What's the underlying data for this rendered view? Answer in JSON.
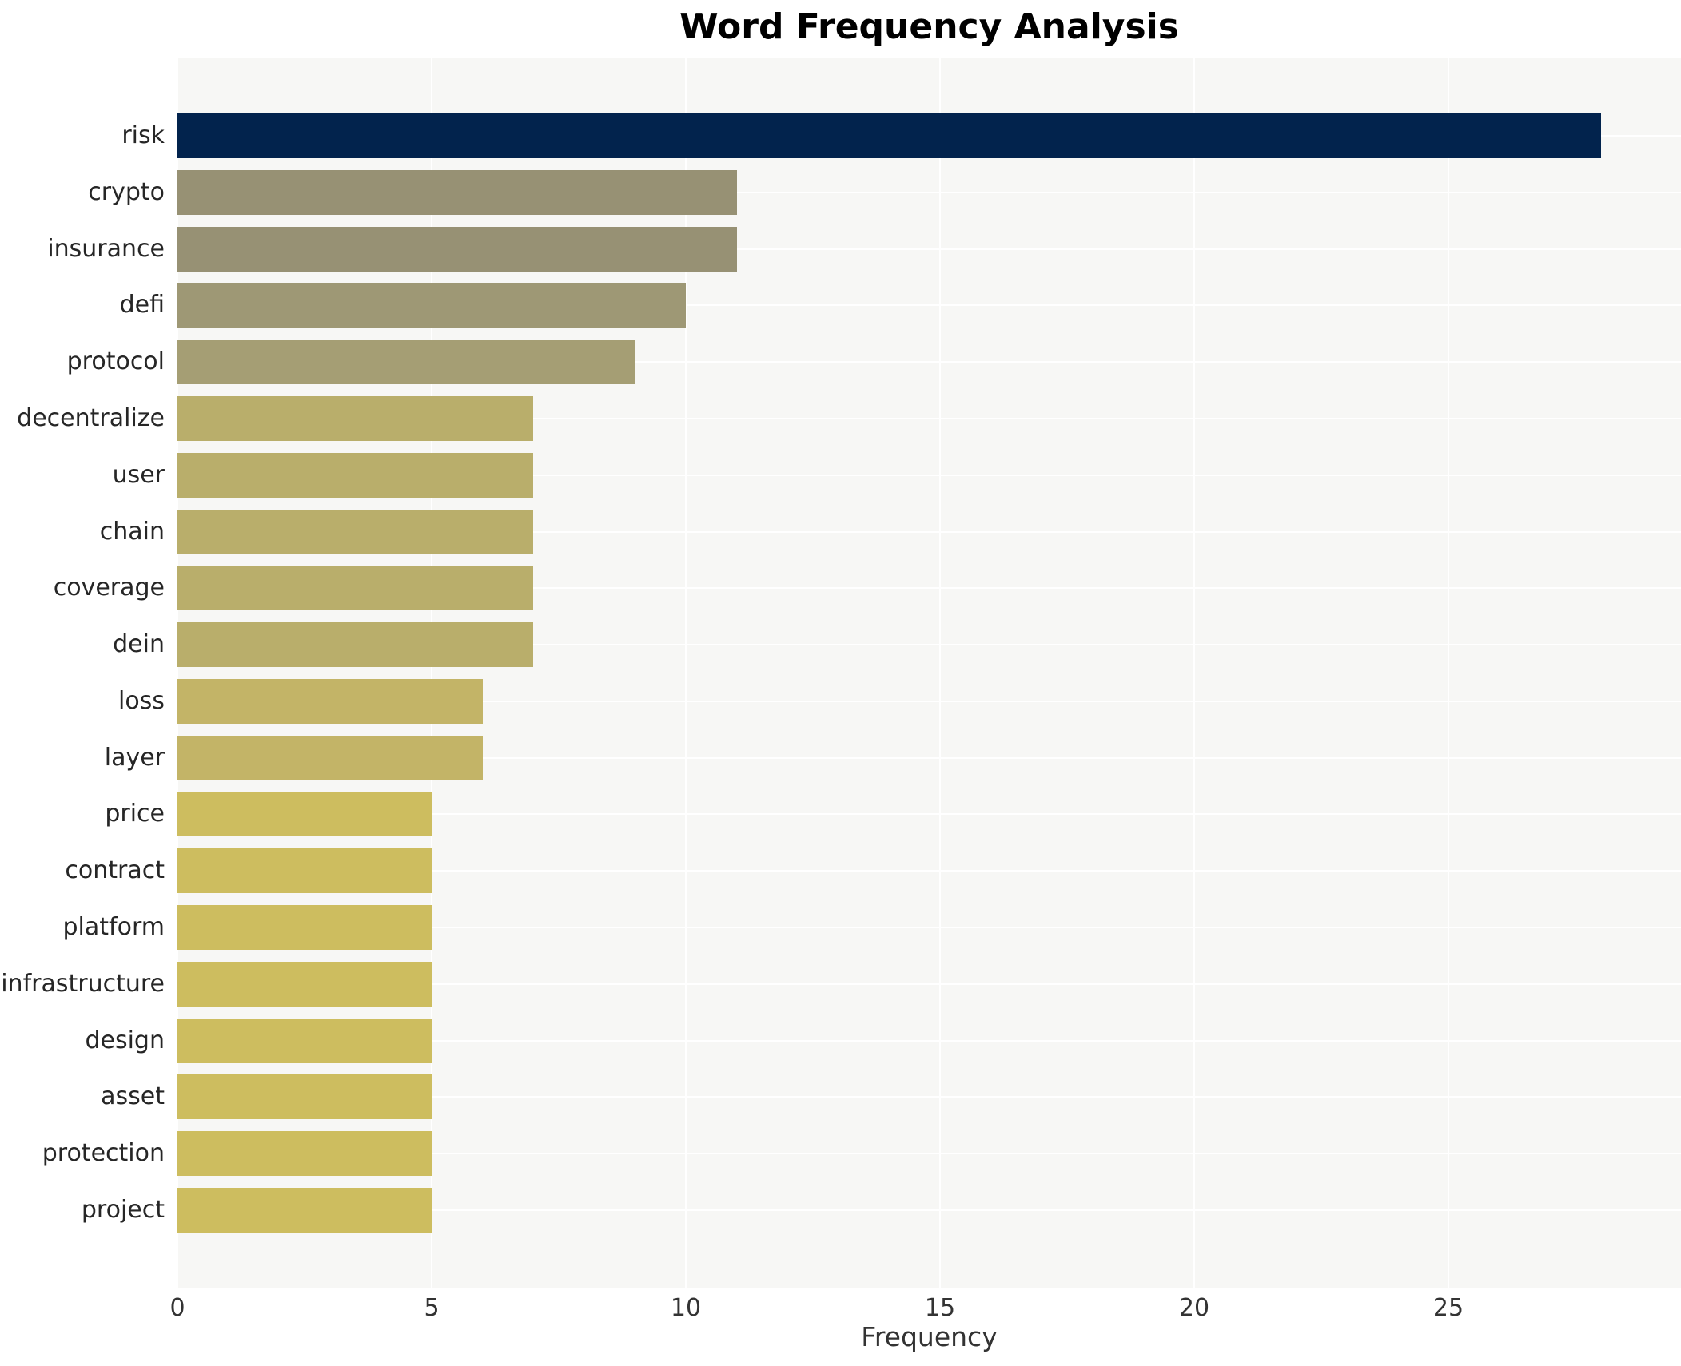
{
  "title": "Word Frequency Analysis",
  "xlabel": "Frequency",
  "chart_data": {
    "type": "bar",
    "orientation": "horizontal",
    "title": "Word Frequency Analysis",
    "xlabel": "Frequency",
    "ylabel": "",
    "categories": [
      "risk",
      "crypto",
      "insurance",
      "defi",
      "protocol",
      "decentralize",
      "user",
      "chain",
      "coverage",
      "dein",
      "loss",
      "layer",
      "price",
      "contract",
      "platform",
      "infrastructure",
      "design",
      "asset",
      "protection",
      "project"
    ],
    "values": [
      28,
      11,
      11,
      10,
      9,
      7,
      7,
      7,
      7,
      7,
      6,
      6,
      5,
      5,
      5,
      5,
      5,
      5,
      5,
      5
    ],
    "bar_colors": [
      "#02234d",
      "#979174",
      "#979174",
      "#9e9875",
      "#a59e74",
      "#b9ae6b",
      "#b9ae6b",
      "#b9ae6b",
      "#b9ae6b",
      "#b9ae6b",
      "#c3b467",
      "#c3b467",
      "#cdbd5f",
      "#cdbd5f",
      "#cdbd5f",
      "#cdbd5f",
      "#cdbd5f",
      "#cdbd5f",
      "#cdbd5f",
      "#cdbd5f"
    ],
    "xticks": [
      0,
      5,
      10,
      15,
      20,
      25
    ],
    "xlim": [
      0,
      29.6
    ],
    "grid": true,
    "grid_color": "#ffffff",
    "plot_background": "#f7f7f5",
    "figure_background": "#ffffff",
    "legend": false,
    "title_color": "#000000",
    "tick_color": "#333333",
    "category_label_color": "#262626"
  }
}
